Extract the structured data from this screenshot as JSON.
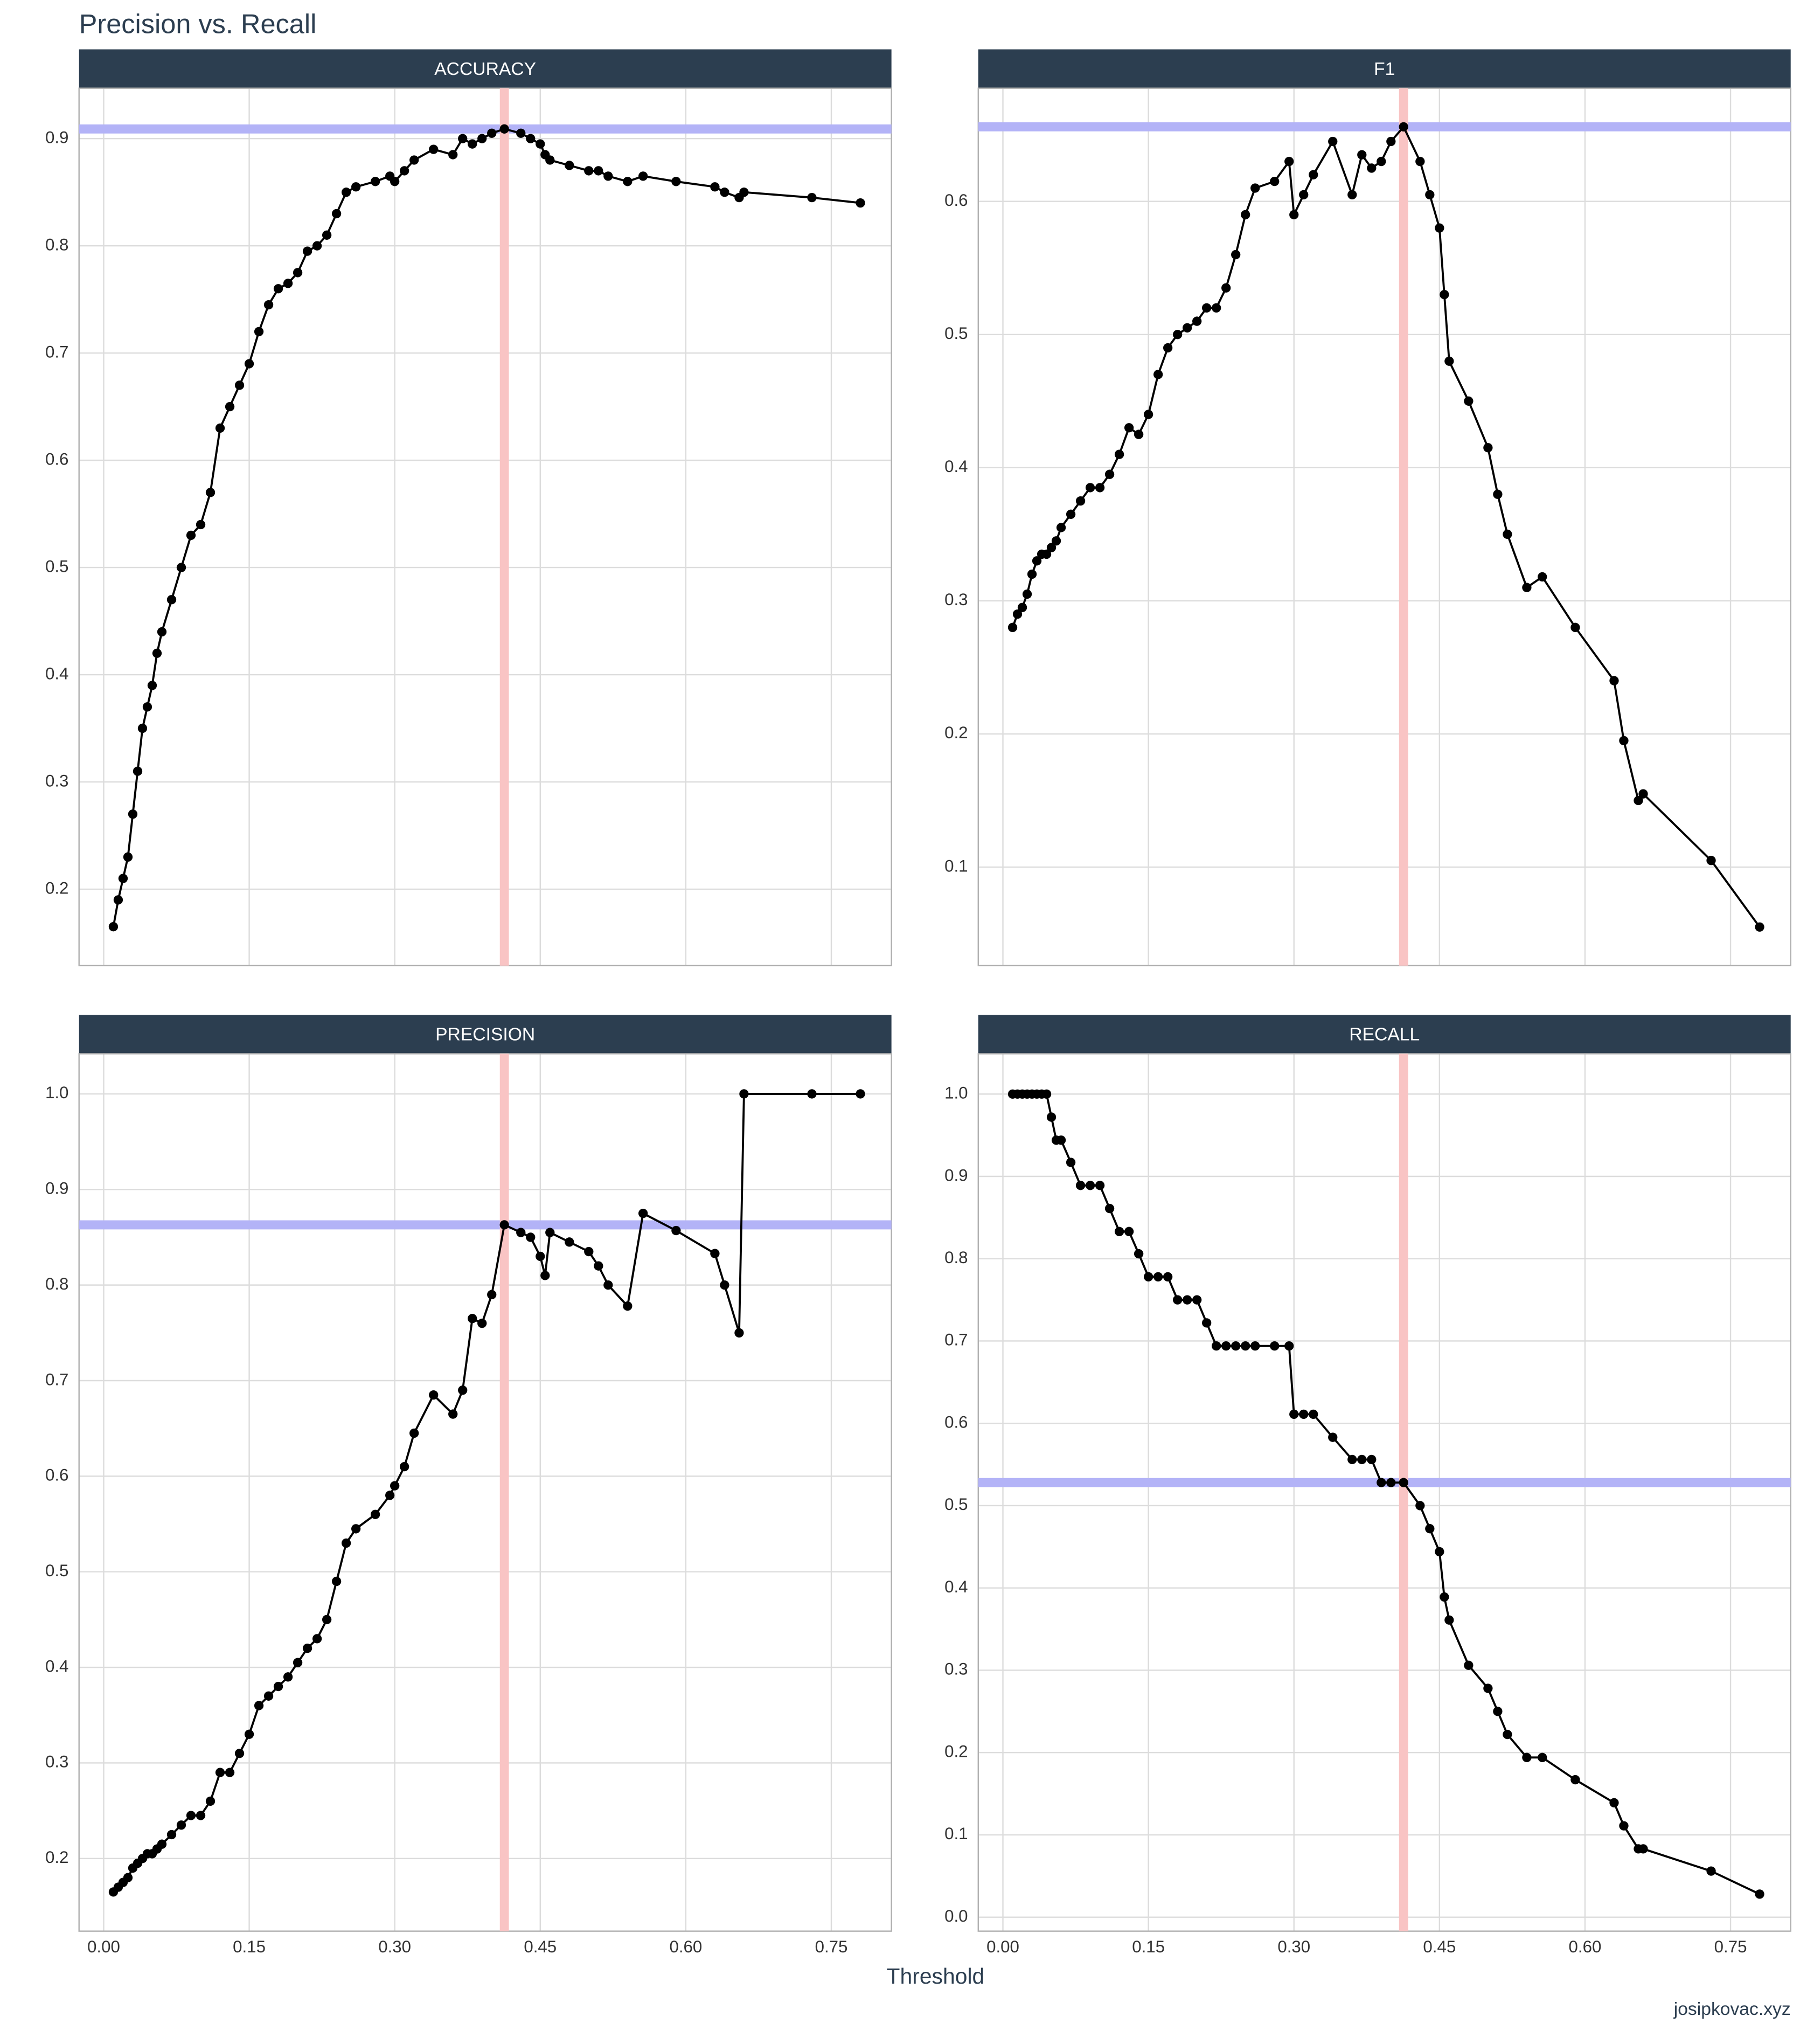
{
  "title": "Precision vs. Recall",
  "xlabel": "Threshold",
  "caption": "josipkovac.xyz",
  "chart_data": [
    {
      "type": "line",
      "title": "ACCURACY",
      "hline": 0.909,
      "vline": 0.413,
      "hline_color": "#b3b3f7",
      "vline_color": "#f9c4c4",
      "grid": true,
      "xlim": [
        -0.0254,
        0.812
      ],
      "ylim": [
        0.1287,
        0.947
      ],
      "xticks": [
        {
          "value": 0,
          "label": "0.00"
        },
        {
          "value": 0.15,
          "label": "0.15"
        },
        {
          "value": 0.3,
          "label": "0.30"
        },
        {
          "value": 0.45,
          "label": "0.45"
        },
        {
          "value": 0.6,
          "label": "0.60"
        },
        {
          "value": 0.75,
          "label": "0.75"
        }
      ],
      "yticks": [
        0.2,
        0.3,
        0.4,
        0.5,
        0.6,
        0.7,
        0.8,
        0.9
      ],
      "x": [
        0.01,
        0.015,
        0.02,
        0.025,
        0.03,
        0.035,
        0.04,
        0.045,
        0.05,
        0.055,
        0.06,
        0.07,
        0.08,
        0.09,
        0.1,
        0.11,
        0.12,
        0.13,
        0.14,
        0.15,
        0.16,
        0.17,
        0.18,
        0.19,
        0.2,
        0.21,
        0.22,
        0.23,
        0.24,
        0.25,
        0.26,
        0.28,
        0.295,
        0.3,
        0.31,
        0.32,
        0.34,
        0.36,
        0.37,
        0.38,
        0.39,
        0.4,
        0.413,
        0.43,
        0.44,
        0.45,
        0.455,
        0.46,
        0.48,
        0.5,
        0.51,
        0.52,
        0.54,
        0.556,
        0.59,
        0.63,
        0.64,
        0.655,
        0.66,
        0.73,
        0.78
      ],
      "series": [
        {
          "color": "#000000",
          "values": [
            0.165,
            0.19,
            0.21,
            0.23,
            0.27,
            0.31,
            0.35,
            0.37,
            0.39,
            0.42,
            0.44,
            0.47,
            0.5,
            0.53,
            0.54,
            0.57,
            0.63,
            0.65,
            0.67,
            0.69,
            0.72,
            0.745,
            0.76,
            0.765,
            0.775,
            0.795,
            0.8,
            0.81,
            0.83,
            0.85,
            0.855,
            0.86,
            0.865,
            0.86,
            0.87,
            0.88,
            0.89,
            0.885,
            0.9,
            0.895,
            0.9,
            0.905,
            0.909,
            0.905,
            0.9,
            0.895,
            0.885,
            0.88,
            0.875,
            0.87,
            0.87,
            0.865,
            0.86,
            0.865,
            0.86,
            0.855,
            0.85,
            0.845,
            0.85,
            0.845,
            0.84
          ]
        }
      ]
    },
    {
      "type": "line",
      "title": "F1",
      "hline": 0.656,
      "vline": 0.413,
      "hline_color": "#b3b3f7",
      "vline_color": "#f9c4c4",
      "grid": true,
      "xlim": [
        -0.0254,
        0.812
      ],
      "ylim": [
        0.026,
        0.685
      ],
      "xticks": [
        {
          "value": 0,
          "label": "0.00"
        },
        {
          "value": 0.15,
          "label": "0.15"
        },
        {
          "value": 0.3,
          "label": "0.30"
        },
        {
          "value": 0.45,
          "label": "0.45"
        },
        {
          "value": 0.6,
          "label": "0.60"
        },
        {
          "value": 0.75,
          "label": "0.75"
        }
      ],
      "yticks": [
        0.1,
        0.2,
        0.3,
        0.4,
        0.5,
        0.6
      ],
      "x": [
        0.01,
        0.015,
        0.02,
        0.025,
        0.03,
        0.035,
        0.04,
        0.045,
        0.05,
        0.055,
        0.06,
        0.07,
        0.08,
        0.09,
        0.1,
        0.11,
        0.12,
        0.13,
        0.14,
        0.15,
        0.16,
        0.17,
        0.18,
        0.19,
        0.2,
        0.21,
        0.22,
        0.23,
        0.24,
        0.25,
        0.26,
        0.28,
        0.295,
        0.3,
        0.31,
        0.32,
        0.34,
        0.36,
        0.37,
        0.38,
        0.39,
        0.4,
        0.413,
        0.43,
        0.44,
        0.45,
        0.455,
        0.46,
        0.48,
        0.5,
        0.51,
        0.52,
        0.54,
        0.556,
        0.59,
        0.63,
        0.64,
        0.655,
        0.66,
        0.73,
        0.78
      ],
      "series": [
        {
          "color": "#000000",
          "values": [
            0.28,
            0.29,
            0.295,
            0.305,
            0.32,
            0.33,
            0.335,
            0.335,
            0.34,
            0.345,
            0.355,
            0.365,
            0.375,
            0.385,
            0.385,
            0.395,
            0.41,
            0.43,
            0.425,
            0.44,
            0.47,
            0.49,
            0.5,
            0.505,
            0.51,
            0.52,
            0.52,
            0.535,
            0.56,
            0.59,
            0.61,
            0.615,
            0.63,
            0.59,
            0.605,
            0.62,
            0.645,
            0.605,
            0.635,
            0.625,
            0.63,
            0.645,
            0.656,
            0.63,
            0.605,
            0.58,
            0.53,
            0.48,
            0.45,
            0.415,
            0.38,
            0.35,
            0.31,
            0.318,
            0.28,
            0.24,
            0.195,
            0.15,
            0.155,
            0.105,
            0.055
          ]
        }
      ]
    },
    {
      "type": "line",
      "title": "PRECISION",
      "hline": 0.863,
      "vline": 0.413,
      "hline_color": "#b3b3f7",
      "vline_color": "#f9c4c4",
      "grid": true,
      "xlim": [
        -0.0254,
        0.812
      ],
      "ylim": [
        0.124,
        1.042
      ],
      "xticks": [
        {
          "value": 0,
          "label": "0.00"
        },
        {
          "value": 0.15,
          "label": "0.15"
        },
        {
          "value": 0.3,
          "label": "0.30"
        },
        {
          "value": 0.45,
          "label": "0.45"
        },
        {
          "value": 0.6,
          "label": "0.60"
        },
        {
          "value": 0.75,
          "label": "0.75"
        }
      ],
      "yticks": [
        0.2,
        0.3,
        0.4,
        0.5,
        0.6,
        0.7,
        0.8,
        0.9,
        {
          "value": 1,
          "label": "1.0"
        }
      ],
      "x": [
        0.01,
        0.015,
        0.02,
        0.025,
        0.03,
        0.035,
        0.04,
        0.045,
        0.05,
        0.055,
        0.06,
        0.07,
        0.08,
        0.09,
        0.1,
        0.11,
        0.12,
        0.13,
        0.14,
        0.15,
        0.16,
        0.17,
        0.18,
        0.19,
        0.2,
        0.21,
        0.22,
        0.23,
        0.24,
        0.25,
        0.26,
        0.28,
        0.295,
        0.3,
        0.31,
        0.32,
        0.34,
        0.36,
        0.37,
        0.38,
        0.39,
        0.4,
        0.413,
        0.43,
        0.44,
        0.45,
        0.455,
        0.46,
        0.48,
        0.5,
        0.51,
        0.52,
        0.54,
        0.556,
        0.59,
        0.63,
        0.64,
        0.655,
        0.66,
        0.73,
        0.78
      ],
      "series": [
        {
          "color": "#000000",
          "values": [
            0.165,
            0.17,
            0.175,
            0.18,
            0.19,
            0.195,
            0.2,
            0.205,
            0.205,
            0.21,
            0.215,
            0.225,
            0.235,
            0.245,
            0.245,
            0.26,
            0.29,
            0.29,
            0.31,
            0.33,
            0.36,
            0.37,
            0.38,
            0.39,
            0.405,
            0.42,
            0.43,
            0.45,
            0.49,
            0.53,
            0.545,
            0.56,
            0.58,
            0.59,
            0.61,
            0.645,
            0.685,
            0.665,
            0.69,
            0.765,
            0.76,
            0.79,
            0.863,
            0.855,
            0.85,
            0.83,
            0.81,
            0.855,
            0.845,
            0.835,
            0.82,
            0.8,
            0.778,
            0.875,
            0.857,
            0.833,
            0.8,
            0.75,
            1,
            1,
            1
          ]
        }
      ]
    },
    {
      "type": "line",
      "title": "RECALL",
      "hline": 0.528,
      "vline": 0.413,
      "hline_color": "#b3b3f7",
      "vline_color": "#f9c4c4",
      "grid": true,
      "xlim": [
        -0.0254,
        0.812
      ],
      "ylim": [
        -0.017,
        1.049
      ],
      "xticks": [
        {
          "value": 0,
          "label": "0.00"
        },
        {
          "value": 0.15,
          "label": "0.15"
        },
        {
          "value": 0.3,
          "label": "0.30"
        },
        {
          "value": 0.45,
          "label": "0.45"
        },
        {
          "value": 0.6,
          "label": "0.60"
        },
        {
          "value": 0.75,
          "label": "0.75"
        }
      ],
      "yticks": [
        {
          "value": 0,
          "label": "0.0"
        },
        0.1,
        0.2,
        0.3,
        0.4,
        0.5,
        0.6,
        0.7,
        0.8,
        0.9,
        {
          "value": 1,
          "label": "1.0"
        }
      ],
      "x": [
        0.01,
        0.015,
        0.02,
        0.025,
        0.03,
        0.035,
        0.04,
        0.045,
        0.05,
        0.055,
        0.06,
        0.07,
        0.08,
        0.09,
        0.1,
        0.11,
        0.12,
        0.13,
        0.14,
        0.15,
        0.16,
        0.17,
        0.18,
        0.19,
        0.2,
        0.21,
        0.22,
        0.23,
        0.24,
        0.25,
        0.26,
        0.28,
        0.295,
        0.3,
        0.31,
        0.32,
        0.34,
        0.36,
        0.37,
        0.38,
        0.39,
        0.4,
        0.413,
        0.43,
        0.44,
        0.45,
        0.455,
        0.46,
        0.48,
        0.5,
        0.51,
        0.52,
        0.54,
        0.556,
        0.59,
        0.63,
        0.64,
        0.655,
        0.66,
        0.73,
        0.78
      ],
      "series": [
        {
          "color": "#000000",
          "values": [
            1,
            1,
            1,
            1,
            1,
            1,
            1,
            1,
            0.972,
            0.944,
            0.944,
            0.917,
            0.889,
            0.889,
            0.889,
            0.861,
            0.833,
            0.833,
            0.806,
            0.778,
            0.778,
            0.778,
            0.75,
            0.75,
            0.75,
            0.722,
            0.694,
            0.694,
            0.694,
            0.694,
            0.694,
            0.694,
            0.694,
            0.611,
            0.611,
            0.611,
            0.583,
            0.556,
            0.556,
            0.556,
            0.528,
            0.528,
            0.528,
            0.5,
            0.472,
            0.444,
            0.389,
            0.361,
            0.306,
            0.278,
            0.25,
            0.222,
            0.194,
            0.194,
            0.167,
            0.139,
            0.111,
            0.083,
            0.083,
            0.056,
            0.028
          ]
        }
      ]
    }
  ]
}
